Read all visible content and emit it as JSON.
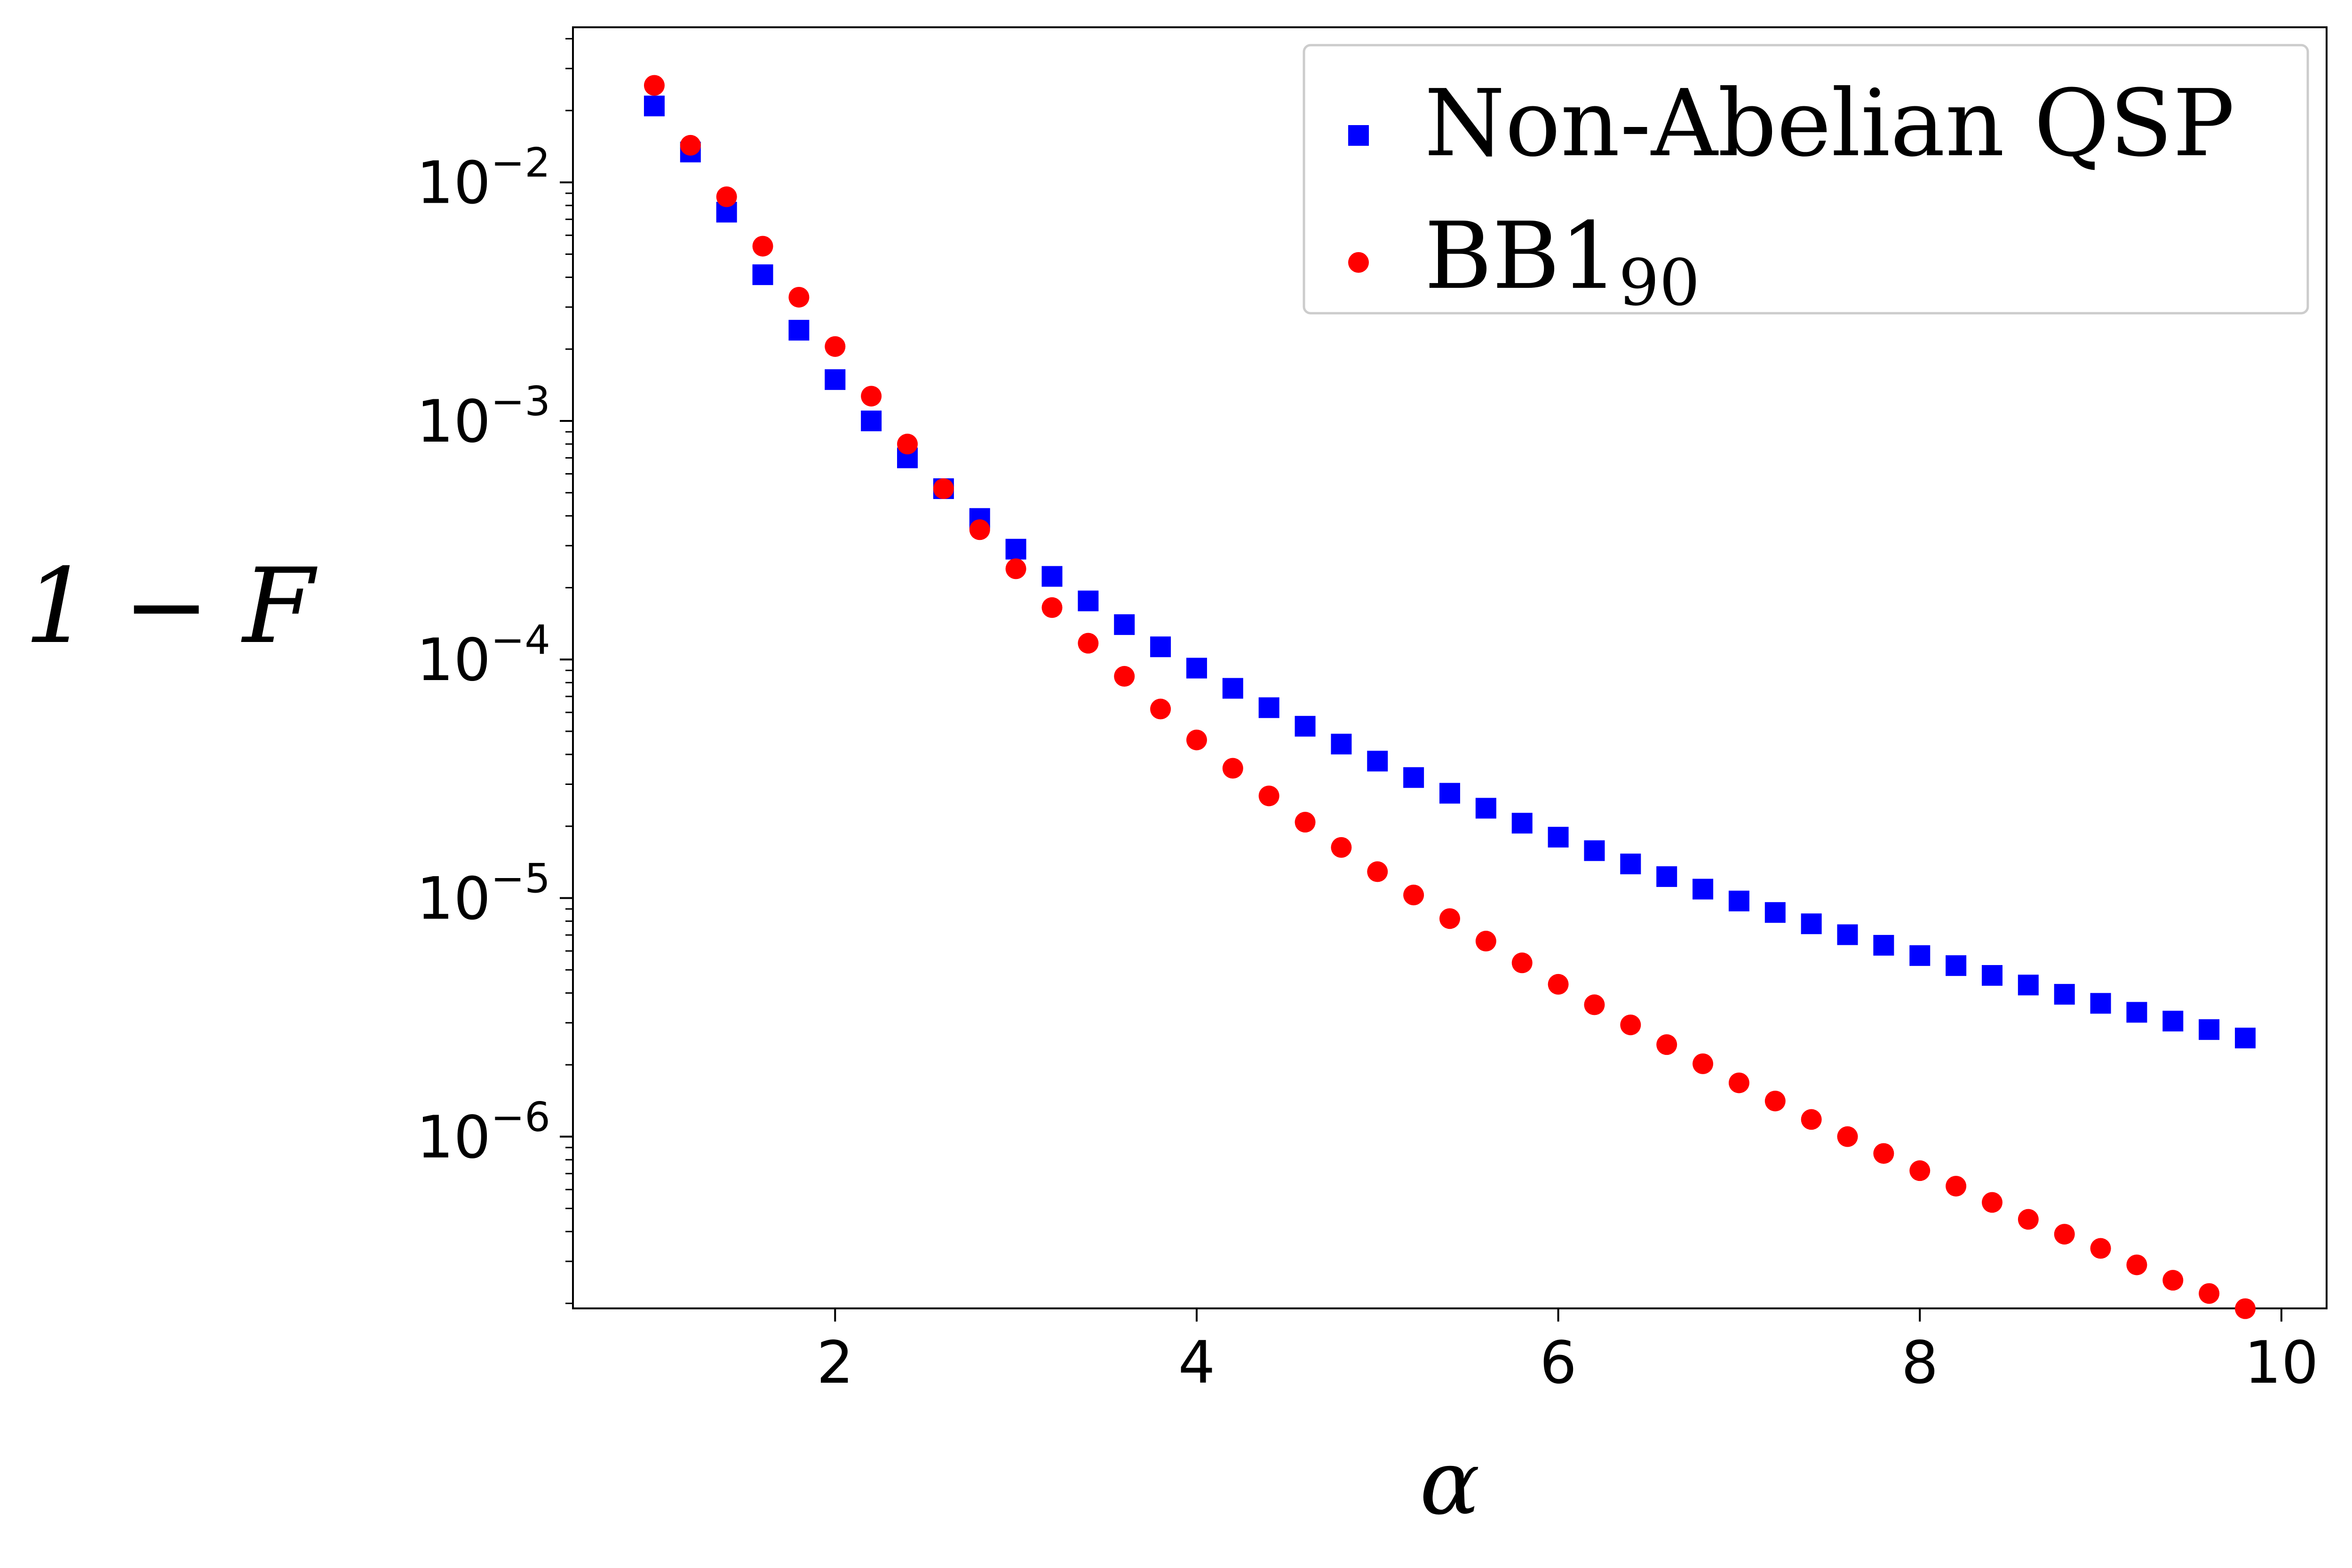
{
  "chart_data": {
    "type": "scatter",
    "xlabel": "α",
    "ylabel": "1 − F",
    "xlim": [
      0.55,
      10.25
    ],
    "ylim_log10": [
      -6.72,
      -1.35
    ],
    "y_scale": "log",
    "grid": false,
    "legend_position": "top-right",
    "x_ticks": [
      {
        "value": 2,
        "label": "2"
      },
      {
        "value": 4,
        "label": "4"
      },
      {
        "value": 6,
        "label": "6"
      },
      {
        "value": 8,
        "label": "8"
      },
      {
        "value": 10,
        "label": "10"
      }
    ],
    "y_ticks": [
      {
        "exp": -2,
        "base": "10",
        "sup": "−2"
      },
      {
        "exp": -3,
        "base": "10",
        "sup": "−3"
      },
      {
        "exp": -4,
        "base": "10",
        "sup": "−4"
      },
      {
        "exp": -5,
        "base": "10",
        "sup": "−5"
      },
      {
        "exp": -6,
        "base": "10",
        "sup": "−6"
      }
    ],
    "x": [
      1.0,
      1.2,
      1.4,
      1.6,
      1.8,
      2.0,
      2.2,
      2.4,
      2.6,
      2.8,
      3.0,
      3.2,
      3.4,
      3.6,
      3.8,
      4.0,
      4.2,
      4.4,
      4.6,
      4.8,
      5.0,
      5.2,
      5.4,
      5.6,
      5.8,
      6.0,
      6.2,
      6.4,
      6.6,
      6.8,
      7.0,
      7.2,
      7.4,
      7.6,
      7.8,
      8.0,
      8.2,
      8.4,
      8.6,
      8.8,
      9.0,
      9.2,
      9.4,
      9.6,
      9.8
    ],
    "series": [
      {
        "name": "Non-Abelian QSP",
        "marker": "square",
        "color": "#0000ff",
        "values": [
          0.0209,
          0.0134,
          0.0075,
          0.0041,
          0.0024,
          0.00149,
          0.001,
          0.0007,
          0.00052,
          0.00039,
          0.00029,
          0.000223,
          0.000176,
          0.00014,
          0.000113,
          9.2e-05,
          7.57e-05,
          6.28e-05,
          5.25e-05,
          4.42e-05,
          3.75e-05,
          3.2e-05,
          2.75e-05,
          2.38e-05,
          2.06e-05,
          1.8e-05,
          1.58e-05,
          1.39e-05,
          1.23e-05,
          1.09e-05,
          9.72e-06,
          8.7e-06,
          7.8e-06,
          7.02e-06,
          6.34e-06,
          5.74e-06,
          5.21e-06,
          4.74e-06,
          4.32e-06,
          3.95e-06,
          3.62e-06,
          3.32e-06,
          3.05e-06,
          2.81e-06,
          2.59e-06
        ]
      },
      {
        "name_base": "BB1",
        "name_sub": "90",
        "marker": "circle",
        "color": "#ff0000",
        "values": [
          0.0255,
          0.0143,
          0.0087,
          0.0054,
          0.0033,
          0.00205,
          0.00127,
          0.0008,
          0.00052,
          0.00035,
          0.00024,
          0.000165,
          0.000117,
          8.5e-05,
          6.2e-05,
          4.6e-05,
          3.5e-05,
          2.68e-05,
          2.08e-05,
          1.63e-05,
          1.29e-05,
          1.03e-05,
          8.2e-06,
          6.6e-06,
          5.35e-06,
          4.35e-06,
          3.57e-06,
          2.94e-06,
          2.43e-06,
          2.02e-06,
          1.68e-06,
          1.41e-06,
          1.18e-06,
          1e-06,
          8.5e-07,
          7.2e-07,
          6.2e-07,
          5.3e-07,
          4.5e-07,
          3.9e-07,
          3.4e-07,
          2.9e-07,
          2.5e-07,
          2.2e-07,
          1.9e-07
        ]
      }
    ]
  }
}
